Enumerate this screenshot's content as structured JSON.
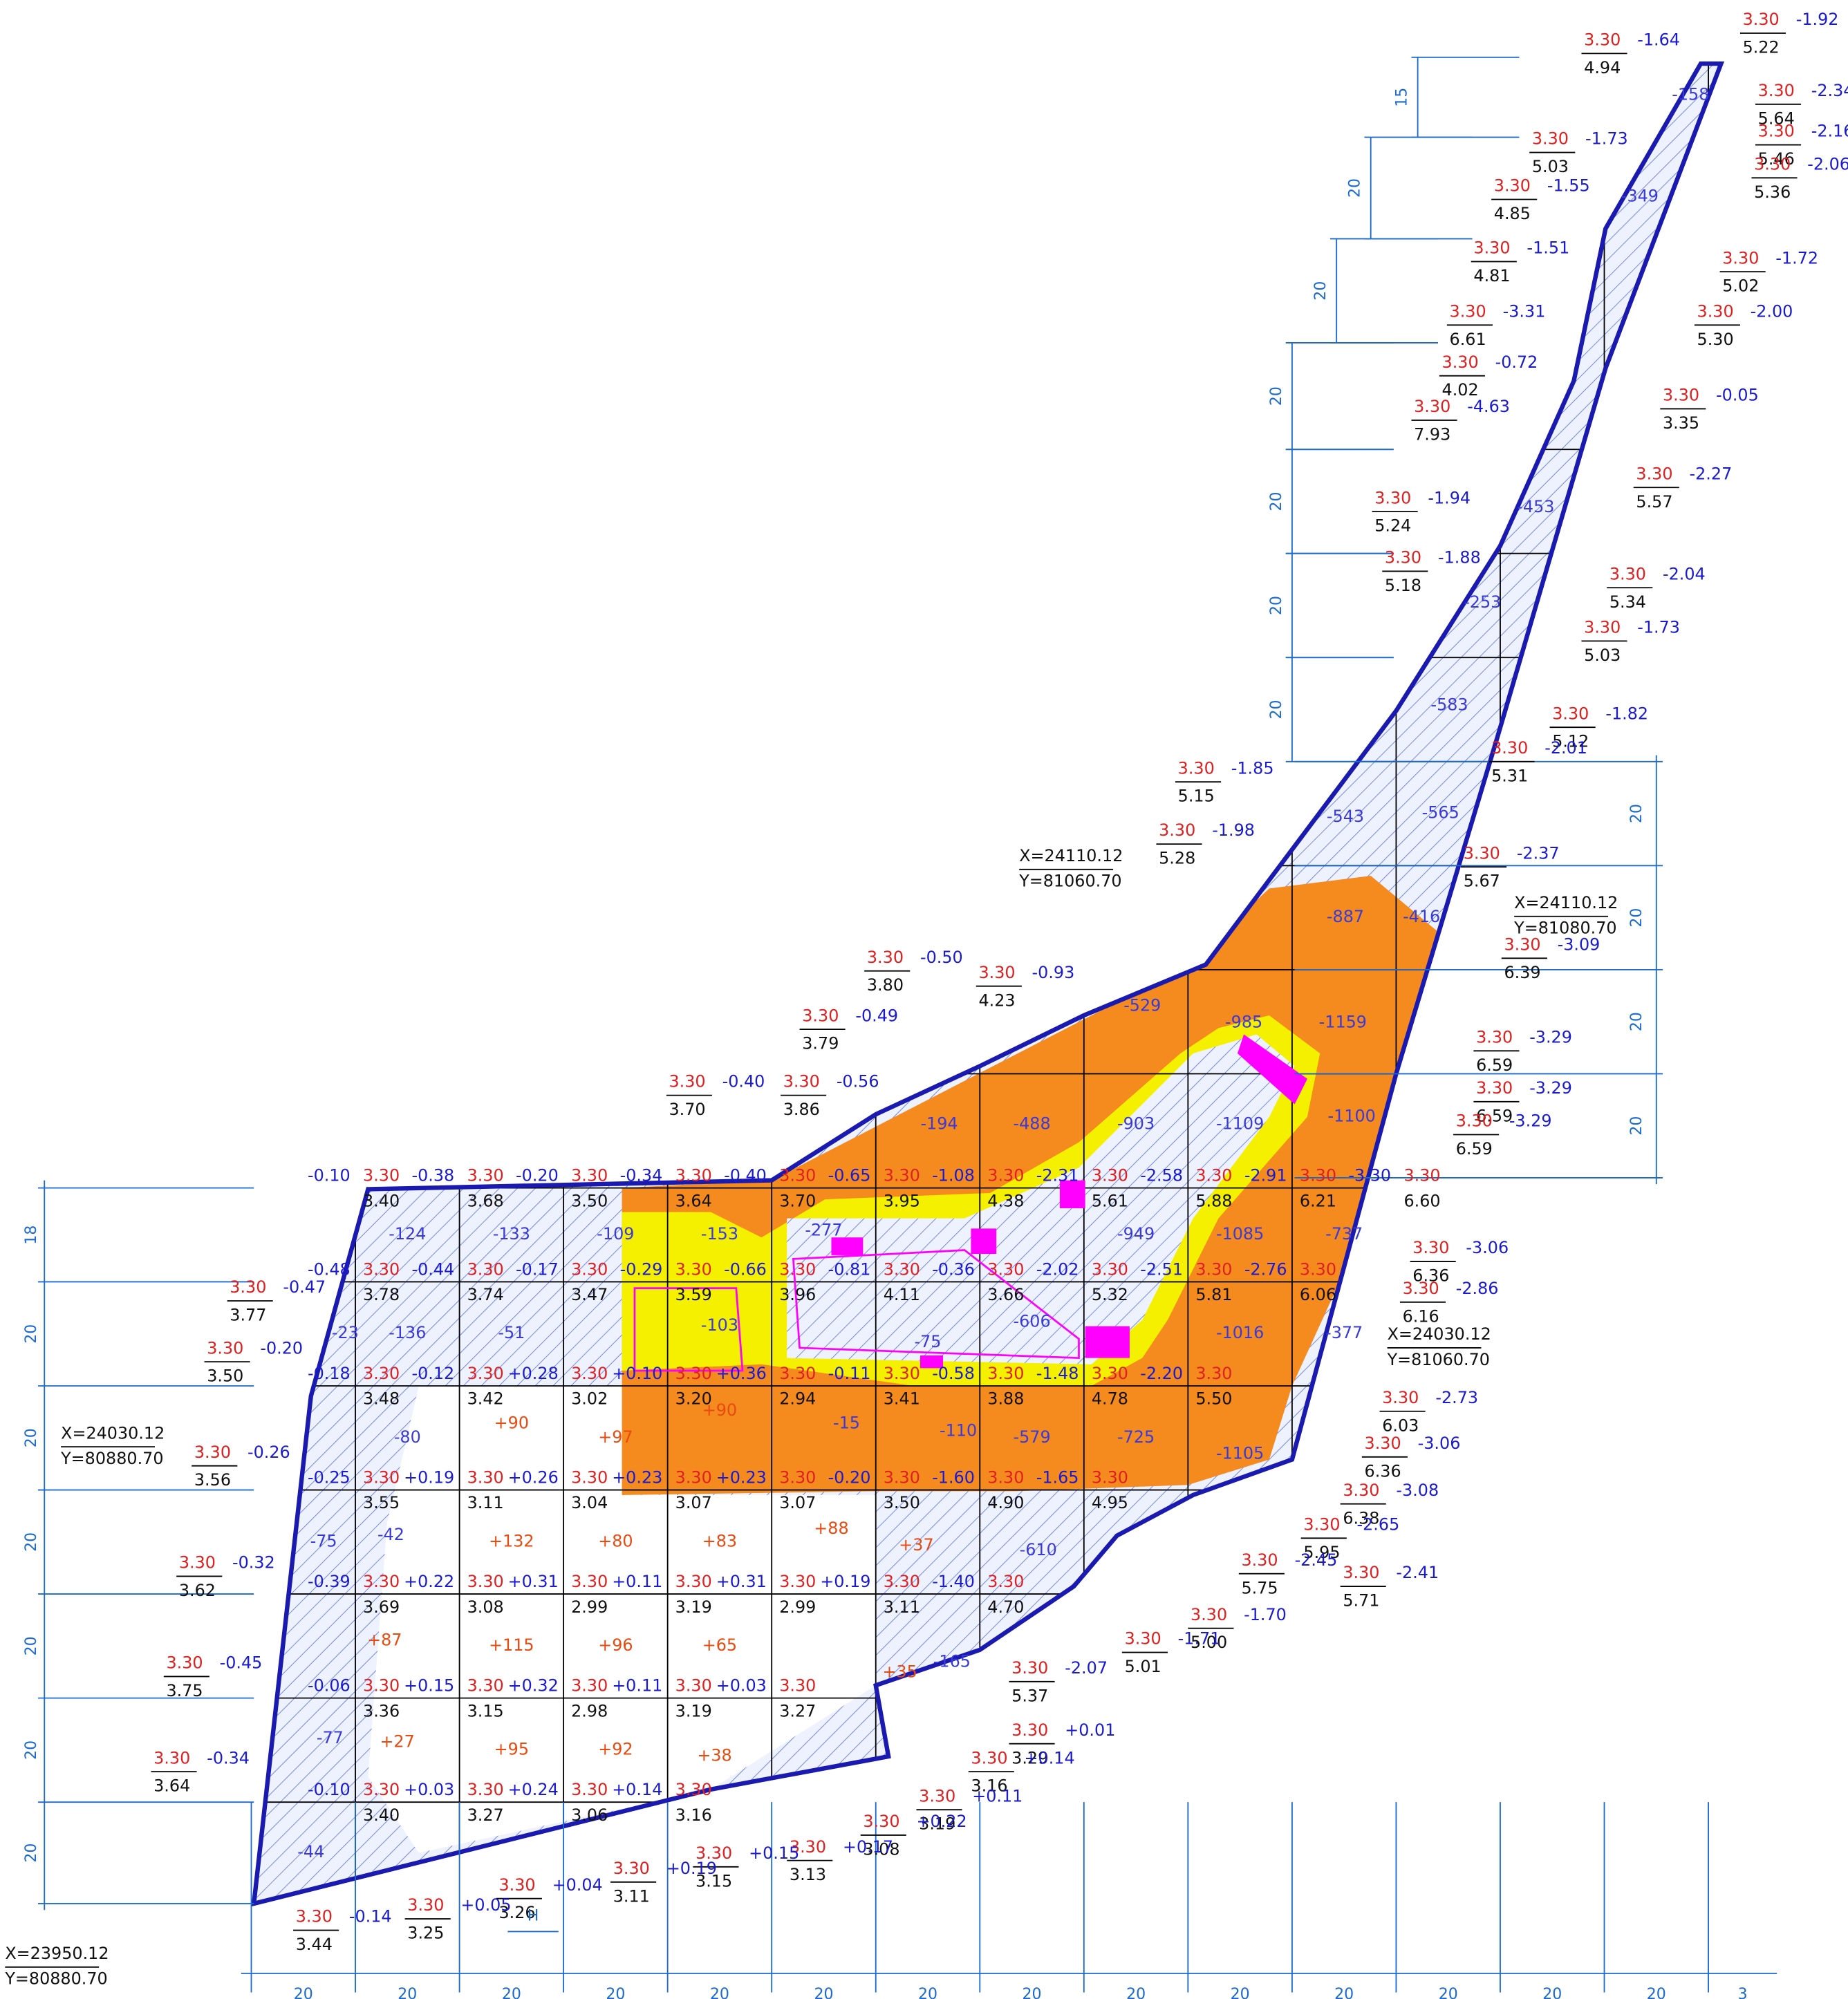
{
  "grid_nodes": [
    [
      [
        "3.30",
        "3.40",
        "-0.10"
      ],
      [
        "3.30",
        "3.68",
        "-0.38"
      ],
      [
        "3.30",
        "3.50",
        "-0.20"
      ],
      [
        "3.30",
        "3.64",
        "-0.34"
      ],
      [
        "3.30",
        "3.70",
        "-0.40"
      ],
      [
        "3.30",
        "3.95",
        "-0.65"
      ],
      [
        "3.30",
        "4.38",
        "-1.08"
      ],
      [
        "3.30",
        "5.61",
        "-2.31"
      ],
      [
        "3.30",
        "5.88",
        "-2.58"
      ],
      [
        "3.30",
        "6.21",
        "-2.91"
      ],
      [
        "3.30",
        "6.60",
        "-3.30"
      ]
    ],
    [
      [
        "3.30",
        "3.78",
        "-0.48"
      ],
      [
        "3.30",
        "3.74",
        "-0.44"
      ],
      [
        "3.30",
        "3.47",
        "-0.17"
      ],
      [
        "3.30",
        "3.59",
        "-0.29"
      ],
      [
        "3.30",
        "3.96",
        "-0.66"
      ],
      [
        "3.30",
        "4.11",
        "-0.81"
      ],
      [
        "3.30",
        "3.66",
        "-0.36"
      ],
      [
        "3.30",
        "5.32",
        "-2.02"
      ],
      [
        "3.30",
        "5.81",
        "-2.51"
      ],
      [
        "3.30",
        "6.06",
        "-2.76"
      ]
    ],
    [
      [
        "3.30",
        "3.48",
        "-0.18"
      ],
      [
        "3.30",
        "3.42",
        "-0.12"
      ],
      [
        "3.30",
        "3.02",
        "+0.28"
      ],
      [
        "3.30",
        "3.20",
        "+0.10"
      ],
      [
        "3.30",
        "2.94",
        "+0.36"
      ],
      [
        "3.30",
        "3.41",
        "-0.11"
      ],
      [
        "3.30",
        "3.88",
        "-0.58"
      ],
      [
        "3.30",
        "4.78",
        "-1.48"
      ],
      [
        "3.30",
        "5.50",
        "-2.20"
      ]
    ],
    [
      [
        "3.30",
        "3.55",
        "-0.25"
      ],
      [
        "3.30",
        "3.11",
        "+0.19"
      ],
      [
        "3.30",
        "3.04",
        "+0.26"
      ],
      [
        "3.30",
        "3.07",
        "+0.23"
      ],
      [
        "3.30",
        "3.07",
        "+0.23"
      ],
      [
        "3.30",
        "3.50",
        "-0.20"
      ],
      [
        "3.30",
        "4.90",
        "-1.60"
      ],
      [
        "3.30",
        "4.95",
        "-1.65"
      ]
    ],
    [
      [
        "3.30",
        "3.69",
        "-0.39"
      ],
      [
        "3.30",
        "3.08",
        "+0.22"
      ],
      [
        "3.30",
        "2.99",
        "+0.31"
      ],
      [
        "3.30",
        "3.19",
        "+0.11"
      ],
      [
        "3.30",
        "2.99",
        "+0.31"
      ],
      [
        "3.30",
        "3.11",
        "+0.19"
      ],
      [
        "3.30",
        "4.70",
        "-1.40"
      ]
    ],
    [
      [
        "3.30",
        "3.36",
        "-0.06"
      ],
      [
        "3.30",
        "3.15",
        "+0.15"
      ],
      [
        "3.30",
        "2.98",
        "+0.32"
      ],
      [
        "3.30",
        "3.19",
        "+0.11"
      ],
      [
        "3.30",
        "3.27",
        "+0.03"
      ]
    ],
    [
      [
        "3.30",
        "3.40",
        "-0.10"
      ],
      [
        "3.30",
        "3.27",
        "+0.03"
      ],
      [
        "3.30",
        "3.06",
        "+0.24"
      ],
      [
        "3.30",
        "3.16",
        "+0.14"
      ]
    ]
  ],
  "callouts": [
    [
      "3.30",
      "4.94",
      "-1.64"
    ],
    [
      "3.30",
      "5.22",
      "-1.92"
    ],
    [
      "3.30",
      "5.64",
      "-2.34"
    ],
    [
      "3.30",
      "5.46",
      "-2.16"
    ],
    [
      "3.30",
      "5.36",
      "-2.06"
    ],
    [
      "3.30",
      "5.03",
      "-1.73"
    ],
    [
      "3.30",
      "4.85",
      "-1.55"
    ],
    [
      "3.30",
      "4.81",
      "-1.51"
    ],
    [
      "3.30",
      "5.02",
      "-1.72"
    ],
    [
      "3.30",
      "6.61",
      "-3.31"
    ],
    [
      "3.30",
      "5.30",
      "-2.00"
    ],
    [
      "3.30",
      "4.02",
      "-0.72"
    ],
    [
      "3.30",
      "3.35",
      "-0.05"
    ],
    [
      "3.30",
      "7.93",
      "-4.63"
    ],
    [
      "3.30",
      "5.57",
      "-2.27"
    ],
    [
      "3.30",
      "5.24",
      "-1.94"
    ],
    [
      "3.30",
      "5.18",
      "-1.88"
    ],
    [
      "3.30",
      "5.34",
      "-2.04"
    ],
    [
      "3.30",
      "5.03",
      "-1.73"
    ],
    [
      "3.30",
      "5.12",
      "-1.82"
    ],
    [
      "3.30",
      "5.31",
      "-2.01"
    ],
    [
      "3.30",
      "5.15",
      "-1.85"
    ],
    [
      "3.30",
      "5.28",
      "-1.98"
    ],
    [
      "3.30",
      "5.67",
      "-2.37"
    ],
    [
      "3.30",
      "6.39",
      "-3.09"
    ],
    [
      "3.30",
      "6.59",
      "-3.29"
    ],
    [
      "3.30",
      "6.59",
      "-3.29"
    ],
    [
      "3.30",
      "6.59",
      "-3.29"
    ],
    [
      "3.30",
      "6.36",
      "-3.06"
    ],
    [
      "3.30",
      "6.16",
      "-2.86"
    ],
    [
      "3.30",
      "6.03",
      "-2.73"
    ],
    [
      "3.30",
      "6.36",
      "-3.06"
    ],
    [
      "3.30",
      "6.38",
      "-3.08"
    ],
    [
      "3.30",
      "5.95",
      "-2.65"
    ],
    [
      "3.30",
      "5.71",
      "-2.41"
    ],
    [
      "3.30",
      "5.75",
      "-2.45"
    ],
    [
      "3.30",
      "5.00",
      "-1.70"
    ],
    [
      "3.30",
      "5.01",
      "-1.71"
    ],
    [
      "3.30",
      "5.37",
      "-2.07"
    ],
    [
      "3.30",
      "3.29",
      "+0.01"
    ],
    [
      "3.30",
      "3.16",
      "+0.14"
    ],
    [
      "3.30",
      "3.19",
      "+0.11"
    ],
    [
      "3.30",
      "3.08",
      "+0.22"
    ],
    [
      "3.30",
      "3.13",
      "+0.17"
    ],
    [
      "3.30",
      "3.15",
      "+0.15"
    ],
    [
      "3.30",
      "3.11",
      "+0.19"
    ],
    [
      "3.30",
      "3.26",
      "+0.04"
    ],
    [
      "3.30",
      "3.25",
      "+0.05"
    ],
    [
      "3.30",
      "3.44",
      "-0.14"
    ],
    [
      "3.30",
      "3.64",
      "-0.34"
    ],
    [
      "3.30",
      "3.75",
      "-0.45"
    ],
    [
      "3.30",
      "3.62",
      "-0.32"
    ],
    [
      "3.30",
      "3.56",
      "-0.26"
    ],
    [
      "3.30",
      "3.50",
      "-0.20"
    ],
    [
      "3.30",
      "3.77",
      "-0.47"
    ],
    [
      "3.30",
      "3.80",
      "-0.50"
    ],
    [
      "3.30",
      "4.23",
      "-0.93"
    ],
    [
      "3.30",
      "3.79",
      "-0.49"
    ],
    [
      "3.30",
      "3.70",
      "-0.40"
    ],
    [
      "3.30",
      "3.86",
      "-0.56"
    ]
  ],
  "cells": [
    "-124",
    "-133",
    "-109",
    "-153",
    "-277",
    "-949",
    "-1085",
    "-737",
    "-136",
    "-51",
    "-103",
    "-75",
    "-606",
    "-1016",
    "-377",
    "-80",
    "+90",
    "+97",
    "+90",
    "-15",
    "-110",
    "-579",
    "-725",
    "-1105",
    "-42",
    "+132",
    "+80",
    "+83",
    "+88",
    "+37",
    "-610",
    "+87",
    "+115",
    "+96",
    "+65",
    "+35",
    "-165",
    "+27",
    "+95",
    "+92",
    "+38",
    "-23",
    "-75",
    "-77",
    "-44",
    "-488",
    "-194",
    "-903",
    "-1109",
    "-1100",
    "-529",
    "-985",
    "-1159",
    "-887",
    "-565",
    "-543",
    "-416",
    "-583",
    "-253",
    "-453",
    "-349",
    "-158"
  ],
  "coordinates": [
    [
      "X=24110.12",
      "Y=81060.70"
    ],
    [
      "X=24110.12",
      "Y=81080.70"
    ],
    [
      "X=24030.12",
      "Y=81060.70"
    ],
    [
      "X=24030.12",
      "Y=80880.70"
    ],
    [
      "X=23950.12",
      "Y=80880.70"
    ]
  ],
  "dimensions": {
    "bottom": [
      "20",
      "20",
      "20",
      "20",
      "20",
      "20",
      "20",
      "20",
      "20",
      "20",
      "20",
      "20",
      "20",
      "20",
      "3"
    ],
    "left": [
      "18",
      "20",
      "20",
      "20",
      "20",
      "20",
      "20"
    ],
    "right": [
      "20",
      "20",
      "20",
      "20"
    ],
    "upper": [
      "15",
      "20",
      "20",
      "20",
      "20",
      "20",
      "20"
    ],
    "marker": "H"
  }
}
